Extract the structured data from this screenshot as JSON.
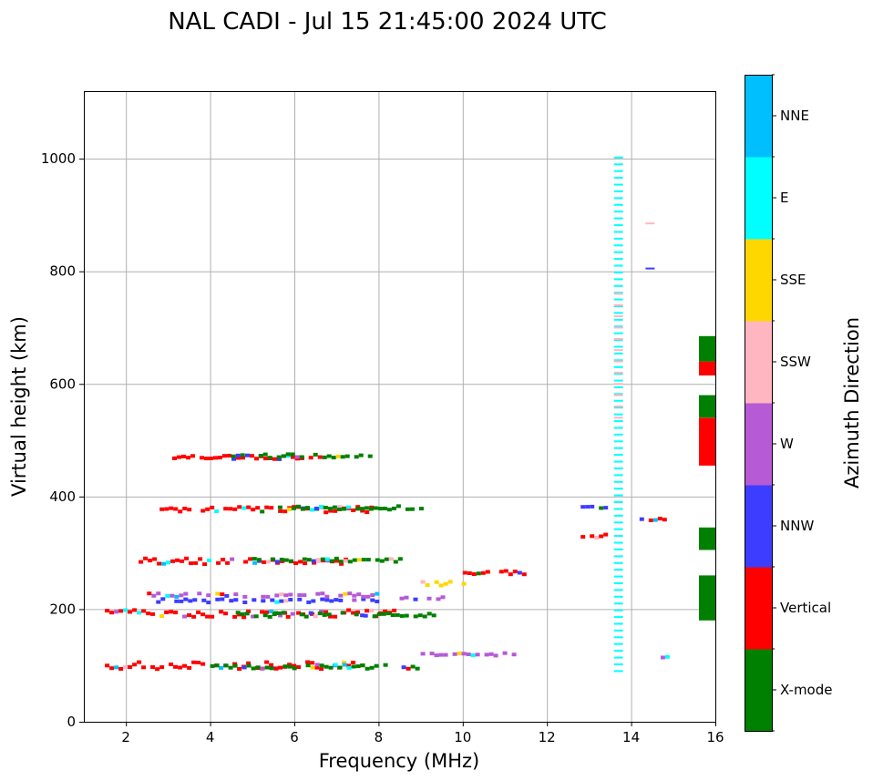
{
  "chart_data": {
    "type": "heatmap",
    "title": "NAL CADI - Jul 15 21:45:00 2024 UTC",
    "xlabel": "Frequency (MHz)",
    "ylabel": "Virtual height (km)",
    "xlim": [
      1,
      16
    ],
    "ylim": [
      0,
      1120
    ],
    "xticks": [
      2,
      4,
      6,
      8,
      10,
      12,
      14,
      16
    ],
    "yticks": [
      0,
      200,
      400,
      600,
      800,
      1000
    ],
    "grid": true,
    "colorbar": {
      "label": "Azimuth Direction",
      "categories": [
        {
          "name": "X-mode",
          "color": "#008000"
        },
        {
          "name": "Vertical",
          "color": "#ff0000"
        },
        {
          "name": "NNW",
          "color": "#3d3dff"
        },
        {
          "name": "W",
          "color": "#b65ad6"
        },
        {
          "name": "SSW",
          "color": "#ffb6c1"
        },
        {
          "name": "SSE",
          "color": "#ffd700"
        },
        {
          "name": "E",
          "color": "#00ffff"
        },
        {
          "name": "NNE",
          "color": "#00bfff"
        }
      ]
    },
    "segments": [
      {
        "f0": 1.5,
        "f1": 7.6,
        "h": 100,
        "dir": "Vertical",
        "spread": 1.0
      },
      {
        "f0": 4.0,
        "f1": 8.9,
        "h": 98,
        "dir": "X-mode",
        "spread": 0.6
      },
      {
        "f0": 1.5,
        "f1": 8.5,
        "h": 192,
        "dir": "Vertical",
        "spread": 1.0
      },
      {
        "f0": 4.5,
        "f1": 9.3,
        "h": 190,
        "dir": "X-mode",
        "spread": 0.6
      },
      {
        "f0": 2.3,
        "f1": 7.2,
        "h": 285,
        "dir": "Vertical",
        "spread": 0.8
      },
      {
        "f0": 5.0,
        "f1": 8.5,
        "h": 287,
        "dir": "X-mode",
        "spread": 0.5
      },
      {
        "f0": 2.8,
        "f1": 7.8,
        "h": 377,
        "dir": "Vertical",
        "spread": 0.8
      },
      {
        "f0": 5.5,
        "f1": 9.0,
        "h": 380,
        "dir": "X-mode",
        "spread": 0.5
      },
      {
        "f0": 3.1,
        "f1": 6.2,
        "h": 470,
        "dir": "Vertical",
        "spread": 0.6
      },
      {
        "f0": 4.5,
        "f1": 7.8,
        "h": 472,
        "dir": "X-mode",
        "spread": 0.5
      },
      {
        "f0": 2.5,
        "f1": 8.0,
        "h": 215,
        "dir": "NNW",
        "spread": 0.5
      },
      {
        "f0": 2.5,
        "f1": 8.0,
        "h": 225,
        "dir": "W",
        "spread": 0.5
      },
      {
        "f0": 8.5,
        "f1": 9.5,
        "h": 220,
        "dir": "W",
        "spread": 0.5
      },
      {
        "f0": 9.0,
        "f1": 10.0,
        "h": 245,
        "dir": "SSE",
        "spread": 0.6
      },
      {
        "f0": 10.0,
        "f1": 11.5,
        "h": 265,
        "dir": "Vertical",
        "spread": 0.5
      },
      {
        "f0": 9.0,
        "f1": 11.2,
        "h": 120,
        "dir": "W",
        "spread": 0.4
      },
      {
        "f0": 12.8,
        "f1": 13.4,
        "h": 330,
        "dir": "Vertical",
        "spread": 0.5
      },
      {
        "f0": 12.8,
        "f1": 13.4,
        "h": 380,
        "dir": "NNW",
        "spread": 0.4
      },
      {
        "f0": 14.2,
        "f1": 14.8,
        "h": 360,
        "dir": "Vertical",
        "spread": 0.4
      },
      {
        "f0": 14.7,
        "f1": 15.1,
        "h": 115,
        "dir": "E",
        "spread": 0.4
      }
    ],
    "columns": [
      {
        "f": 13.7,
        "h0": 90,
        "h1": 1010,
        "dir": "E",
        "step": 12
      },
      {
        "f": 13.7,
        "h0": 540,
        "h1": 760,
        "dir": "SSW",
        "step": 20
      },
      {
        "f": 14.45,
        "h0": 885,
        "h1": 890,
        "dir": "SSW",
        "step": 12
      },
      {
        "f": 14.45,
        "h0": 805,
        "h1": 810,
        "dir": "NNW",
        "step": 12
      }
    ],
    "edge_blocks": [
      {
        "h0": 180,
        "h1": 260,
        "dir": "X-mode"
      },
      {
        "h0": 305,
        "h1": 345,
        "dir": "X-mode"
      },
      {
        "h0": 455,
        "h1": 540,
        "dir": "Vertical"
      },
      {
        "h0": 540,
        "h1": 580,
        "dir": "X-mode"
      },
      {
        "h0": 615,
        "h1": 640,
        "dir": "Vertical"
      },
      {
        "h0": 640,
        "h1": 685,
        "dir": "X-mode"
      }
    ]
  }
}
